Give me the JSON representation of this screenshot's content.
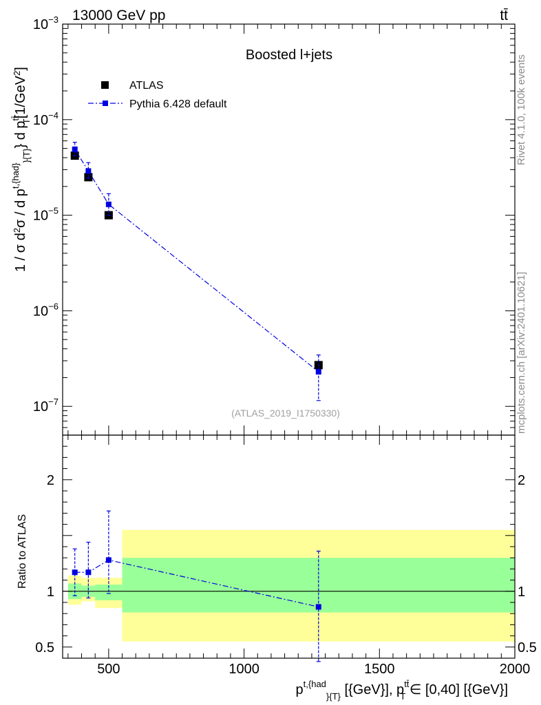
{
  "header": {
    "left": "13000 GeV pp",
    "right": "tt̄"
  },
  "side_labels": {
    "rivet": "Rivet 4.1.0,  100k events",
    "mcplots": "mcplots.cern.ch [arXiv:2401.10621]"
  },
  "chart_data": [
    {
      "type": "scatter",
      "panel": "main",
      "title": "Boosted l+jets",
      "reference": "(ATLAS_2019_I1750330)",
      "ylabel": "1 / σ d²σ / d p^{t,{had}}_{T} d p^{t̄t}_{T} [1/GeV²]",
      "yscale": "log",
      "ylim": [
        5e-08,
        0.001
      ],
      "yticks": [
        {
          "value": 1e-07,
          "label": "10",
          "exp": "−7"
        },
        {
          "value": 1e-06,
          "label": "10",
          "exp": "−6"
        },
        {
          "value": 1e-05,
          "label": "10",
          "exp": "−5"
        },
        {
          "value": 0.0001,
          "label": "10",
          "exp": "−4"
        },
        {
          "value": 0.001,
          "label": "10",
          "exp": "−3"
        }
      ],
      "xlim": [
        330,
        2000
      ],
      "legend": {
        "position": "top-left",
        "entries": [
          {
            "label": "ATLAS"
          },
          {
            "label": "Pythia 6.428 default"
          }
        ]
      },
      "series": [
        {
          "name": "ATLAS",
          "style": "black-square-markers",
          "x": [
            375,
            425,
            500,
            1275
          ],
          "y": [
            4.2e-05,
            2.5e-05,
            1e-05,
            2.7e-07
          ]
        },
        {
          "name": "Pythia 6.428 default",
          "style": "blue-dashdot-line",
          "color": "#0000e0",
          "x": [
            375,
            425,
            500,
            1275
          ],
          "y": [
            4.9e-05,
            2.9e-05,
            1.3e-05,
            2.3e-07
          ],
          "yerr_low": [
            4.2e-05,
            2.45e-05,
            1e-05,
            1.15e-07
          ],
          "yerr_high": [
            5.8e-05,
            3.55e-05,
            1.68e-05,
            3.45e-07
          ]
        }
      ]
    },
    {
      "type": "scatter",
      "panel": "ratio",
      "ylabel": "Ratio to ATLAS",
      "xlabel": "p^{t,{had}}_{{T}} [{GeV}], p^{t̄t}_{T} ∈ [0,40] [{GeV}]",
      "xlim": [
        330,
        2000
      ],
      "ylim": [
        0.4,
        2.4
      ],
      "xticks": [
        {
          "value": 500,
          "label": "500"
        },
        {
          "value": 1000,
          "label": "1000"
        },
        {
          "value": 1500,
          "label": "1500"
        },
        {
          "value": 2000,
          "label": "2000"
        }
      ],
      "yticks": [
        {
          "value": 0.5,
          "label": "0.5"
        },
        {
          "value": 1,
          "label": "1"
        },
        {
          "value": 2,
          "label": "2"
        }
      ],
      "bands": [
        {
          "name": "outer",
          "color": "#ffff99",
          "bins": [
            [
              350,
              400
            ],
            [
              400,
              450
            ],
            [
              450,
              550
            ],
            [
              550,
              2000
            ]
          ],
          "low": [
            0.88,
            0.91,
            0.85,
            0.55
          ],
          "high": [
            1.14,
            1.12,
            1.12,
            1.55
          ]
        },
        {
          "name": "inner",
          "color": "#99ff99",
          "bins": [
            [
              350,
              400
            ],
            [
              400,
              450
            ],
            [
              450,
              550
            ],
            [
              550,
              2000
            ]
          ],
          "low": [
            0.93,
            0.95,
            0.92,
            0.81
          ],
          "high": [
            1.07,
            1.05,
            1.06,
            1.3
          ]
        }
      ],
      "series": [
        {
          "name": "Pythia 6.428 default",
          "color": "#0000e0",
          "x": [
            375,
            425,
            500,
            1275
          ],
          "y": [
            1.17,
            1.17,
            1.28,
            0.86
          ],
          "yerr_low": [
            0.96,
            0.94,
            0.98,
            0.37
          ],
          "yerr_high": [
            1.38,
            1.44,
            1.72,
            1.36
          ]
        }
      ]
    }
  ]
}
